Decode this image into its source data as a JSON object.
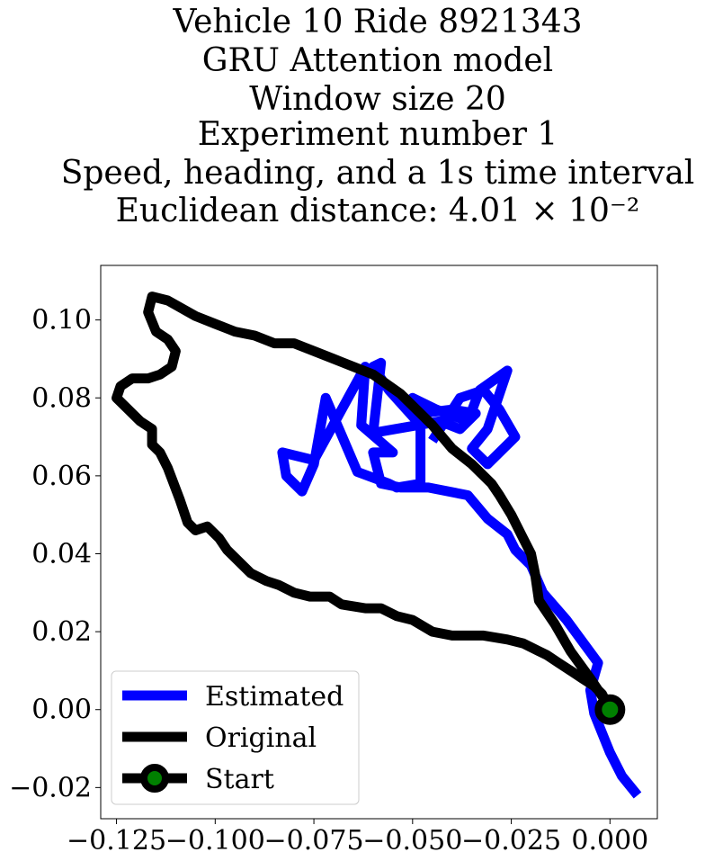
{
  "chart_data": {
    "type": "line",
    "title_lines": [
      "Vehicle 10 Ride 8921343",
      "GRU Attention model",
      "Window size 20",
      "Experiment number 1",
      "Speed, heading, and a 1s time interval",
      "Euclidean distance: 4.01 × 10⁻²"
    ],
    "xlabel": "",
    "ylabel": "",
    "xlim": [
      -0.129,
      0.012
    ],
    "ylim": [
      -0.028,
      0.114
    ],
    "xticks": [
      -0.125,
      -0.1,
      -0.075,
      -0.05,
      -0.025,
      0.0
    ],
    "xtick_labels": [
      "−0.125",
      "−0.100",
      "−0.075",
      "−0.050",
      "−0.025",
      "0.000"
    ],
    "yticks": [
      -0.02,
      0.0,
      0.02,
      0.04,
      0.06,
      0.08,
      0.1
    ],
    "ytick_labels": [
      "−0.02",
      "0.00",
      "0.02",
      "0.04",
      "0.06",
      "0.08",
      "0.10"
    ],
    "grid": false,
    "legend_position": "lower-left",
    "series": [
      {
        "name": "Estimated",
        "color": "#0000ff",
        "x": [
          0.007,
          0.003,
          0.0,
          -0.002,
          -0.004,
          -0.005,
          -0.003,
          -0.011,
          -0.017,
          -0.02,
          -0.024,
          -0.026,
          -0.031,
          -0.036,
          -0.046,
          -0.053,
          -0.058,
          -0.06,
          -0.055,
          -0.063,
          -0.062,
          -0.075,
          -0.083,
          -0.082,
          -0.078,
          -0.075,
          -0.072,
          -0.064,
          -0.056,
          -0.054,
          -0.048,
          -0.048,
          -0.056,
          -0.06,
          -0.058,
          -0.06,
          -0.043,
          -0.038,
          -0.034,
          -0.04,
          -0.048,
          -0.05,
          -0.044,
          -0.036,
          -0.033,
          -0.026,
          -0.031,
          -0.035,
          -0.031,
          -0.024,
          -0.028,
          -0.032,
          -0.038,
          -0.045
        ],
        "y": [
          -0.022,
          -0.017,
          -0.011,
          -0.006,
          -0.001,
          0.005,
          0.012,
          0.023,
          0.03,
          0.037,
          0.041,
          0.045,
          0.049,
          0.055,
          0.057,
          0.057,
          0.058,
          0.066,
          0.066,
          0.073,
          0.088,
          0.064,
          0.066,
          0.06,
          0.056,
          0.063,
          0.08,
          0.061,
          0.058,
          0.057,
          0.058,
          0.073,
          0.082,
          0.088,
          0.089,
          0.071,
          0.074,
          0.072,
          0.076,
          0.077,
          0.076,
          0.08,
          0.077,
          0.074,
          0.082,
          0.087,
          0.072,
          0.067,
          0.063,
          0.07,
          0.077,
          0.082,
          0.08,
          0.069
        ]
      },
      {
        "name": "Original",
        "color": "#000000",
        "x": [
          0.0,
          -0.001,
          -0.002,
          -0.004,
          -0.007,
          -0.01,
          -0.013,
          -0.016,
          -0.018,
          -0.02,
          -0.022,
          -0.026,
          -0.032,
          -0.04,
          -0.045,
          -0.05,
          -0.054,
          -0.058,
          -0.062,
          -0.068,
          -0.071,
          -0.076,
          -0.08,
          -0.084,
          -0.087,
          -0.091,
          -0.094,
          -0.097,
          -0.099,
          -0.102,
          -0.105,
          -0.107,
          -0.109,
          -0.112,
          -0.114,
          -0.116,
          -0.116,
          -0.119,
          -0.122,
          -0.125,
          -0.124,
          -0.121,
          -0.117,
          -0.114,
          -0.111,
          -0.11,
          -0.112,
          -0.115,
          -0.117,
          -0.116,
          -0.112,
          -0.105,
          -0.1,
          -0.095,
          -0.09,
          -0.085,
          -0.08,
          -0.075,
          -0.07,
          -0.06,
          -0.053,
          -0.045,
          -0.04,
          -0.035,
          -0.03,
          -0.028,
          -0.025,
          -0.022,
          -0.02,
          -0.019,
          -0.018,
          -0.014,
          -0.01,
          -0.005,
          -0.001
        ],
        "y": [
          0.0,
          0.002,
          0.004,
          0.006,
          0.008,
          0.01,
          0.012,
          0.014,
          0.015,
          0.016,
          0.017,
          0.018,
          0.019,
          0.019,
          0.02,
          0.023,
          0.024,
          0.026,
          0.026,
          0.027,
          0.029,
          0.029,
          0.03,
          0.032,
          0.033,
          0.035,
          0.038,
          0.041,
          0.044,
          0.047,
          0.046,
          0.048,
          0.054,
          0.062,
          0.066,
          0.068,
          0.072,
          0.074,
          0.077,
          0.08,
          0.083,
          0.085,
          0.085,
          0.086,
          0.088,
          0.092,
          0.095,
          0.097,
          0.102,
          0.106,
          0.105,
          0.101,
          0.099,
          0.097,
          0.096,
          0.094,
          0.094,
          0.092,
          0.09,
          0.086,
          0.081,
          0.073,
          0.067,
          0.063,
          0.058,
          0.055,
          0.05,
          0.044,
          0.04,
          0.035,
          0.028,
          0.022,
          0.015,
          0.008,
          0.002
        ]
      },
      {
        "name": "Start",
        "color": "#000000",
        "marker_face": "#008000",
        "x": [
          0.0
        ],
        "y": [
          0.0
        ]
      }
    ]
  }
}
